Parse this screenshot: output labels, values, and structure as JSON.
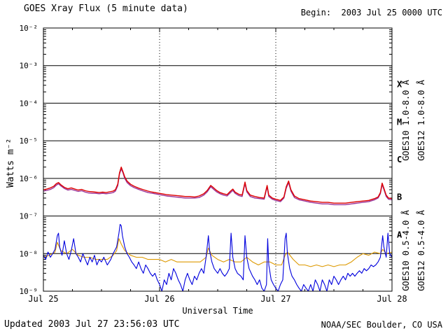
{
  "header": {
    "title": "GOES Xray Flux (5 minute data)",
    "begin_label": "Begin:  2003 Jul 25 0000 UTC"
  },
  "footer": {
    "updated": "Updated 2003 Jul 27 23:56:03 UTC",
    "source": "NOAA/SEC Boulder, CO USA"
  },
  "chart_data": {
    "type": "line",
    "title": "GOES Xray Flux (5 minute data)",
    "xlabel": "Universal Time",
    "ylabel": "Watts m⁻²",
    "x_unit": "days since 2003 Jul 25 0000 UTC",
    "xlim": [
      0,
      3
    ],
    "ylog": true,
    "ylim": [
      1e-09,
      0.01
    ],
    "grid": true,
    "legend_position": "right",
    "y_ticks": [
      {
        "exp": -2,
        "label": "10⁻²"
      },
      {
        "exp": -3,
        "label": "10⁻³"
      },
      {
        "exp": -4,
        "label": "10⁻⁴"
      },
      {
        "exp": -5,
        "label": "10⁻⁵"
      },
      {
        "exp": -6,
        "label": "10⁻⁶"
      },
      {
        "exp": -7,
        "label": "10⁻⁷"
      },
      {
        "exp": -8,
        "label": "10⁻⁸"
      },
      {
        "exp": -9,
        "label": "10⁻⁹"
      }
    ],
    "x_ticks": [
      {
        "t": 0,
        "label": "Jul 25"
      },
      {
        "t": 1,
        "label": "Jul 26"
      },
      {
        "t": 2,
        "label": "Jul 27"
      },
      {
        "t": 3,
        "label": "Jul 28"
      }
    ],
    "flare_classes": [
      {
        "letter": "X",
        "band": [
          -4,
          -3
        ]
      },
      {
        "letter": "M",
        "band": [
          -5,
          -4
        ]
      },
      {
        "letter": "C",
        "band": [
          -6,
          -5
        ]
      },
      {
        "letter": "B",
        "band": [
          -7,
          -6
        ]
      },
      {
        "letter": "A",
        "band": [
          -8,
          -7
        ]
      }
    ],
    "series": [
      {
        "name": "GOES10 1.0-8.0 Å",
        "color": "#993399",
        "legend": {
          "x": 584,
          "yc": 172
        },
        "x": [
          0.0,
          0.03,
          0.06,
          0.09,
          0.11,
          0.13,
          0.15,
          0.18,
          0.21,
          0.24,
          0.27,
          0.3,
          0.33,
          0.36,
          0.39,
          0.42,
          0.45,
          0.48,
          0.51,
          0.54,
          0.57,
          0.6,
          0.62,
          0.64,
          0.655,
          0.67,
          0.685,
          0.7,
          0.72,
          0.75,
          0.78,
          0.82,
          0.86,
          0.9,
          0.94,
          0.98,
          1.02,
          1.06,
          1.1,
          1.14,
          1.18,
          1.22,
          1.26,
          1.3,
          1.34,
          1.38,
          1.41,
          1.44,
          1.46,
          1.49,
          1.52,
          1.55,
          1.58,
          1.61,
          1.63,
          1.65,
          1.68,
          1.71,
          1.735,
          1.75,
          1.78,
          1.82,
          1.86,
          1.9,
          1.925,
          1.94,
          1.97,
          2.0,
          2.04,
          2.07,
          2.09,
          2.11,
          2.13,
          2.16,
          2.2,
          2.25,
          2.3,
          2.35,
          2.4,
          2.45,
          2.5,
          2.55,
          2.6,
          2.65,
          2.7,
          2.75,
          2.8,
          2.85,
          2.88,
          2.9,
          2.915,
          2.93,
          2.95,
          2.97,
          3.0
        ],
        "v": [
          4.6e-07,
          4.8e-07,
          5.1e-07,
          5.7e-07,
          6.6e-07,
          7.2e-07,
          6.3e-07,
          5.4e-07,
          4.9e-07,
          5.1e-07,
          4.8e-07,
          4.5e-07,
          4.7e-07,
          4.3e-07,
          4.1e-07,
          4e-07,
          4e-07,
          3.9e-07,
          4e-07,
          3.9e-07,
          4e-07,
          4.2e-07,
          4.6e-07,
          6.4e-07,
          1.3e-06,
          1.8e-06,
          1.4e-06,
          1e-06,
          7.8e-07,
          6.4e-07,
          5.7e-07,
          5.1e-07,
          4.6e-07,
          4.2e-07,
          4e-07,
          3.8e-07,
          3.6e-07,
          3.4e-07,
          3.3e-07,
          3.2e-07,
          3.1e-07,
          3e-07,
          3e-07,
          3e-07,
          3.1e-07,
          3.6e-07,
          4.4e-07,
          6e-07,
          5.3e-07,
          4.4e-07,
          3.9e-07,
          3.6e-07,
          3.4e-07,
          4.2e-07,
          4.8e-07,
          4e-07,
          3.5e-07,
          3.3e-07,
          7.4e-07,
          4.4e-07,
          3.3e-07,
          3e-07,
          2.9e-07,
          2.8e-07,
          6e-07,
          3.3e-07,
          2.8e-07,
          2.6e-07,
          2.4e-07,
          3e-07,
          5.5e-07,
          7.8e-07,
          4.6e-07,
          3.1e-07,
          2.7e-07,
          2.5e-07,
          2.3e-07,
          2.2e-07,
          2.1e-07,
          2.1e-07,
          2e-07,
          2e-07,
          2e-07,
          2.1e-07,
          2.2e-07,
          2.3e-07,
          2.4e-07,
          2.7e-07,
          3e-07,
          3.9e-07,
          6.9e-07,
          5.1e-07,
          3.3e-07,
          2.8e-07,
          2.7e-07
        ]
      },
      {
        "name": "GOES12 1.0-8.0 Å",
        "color": "#dd0000",
        "legend": {
          "x": 606,
          "yc": 172
        },
        "x": [
          0.0,
          0.03,
          0.06,
          0.09,
          0.11,
          0.13,
          0.15,
          0.18,
          0.21,
          0.24,
          0.27,
          0.3,
          0.33,
          0.36,
          0.39,
          0.42,
          0.45,
          0.48,
          0.51,
          0.54,
          0.57,
          0.6,
          0.62,
          0.64,
          0.655,
          0.67,
          0.685,
          0.7,
          0.72,
          0.75,
          0.78,
          0.82,
          0.86,
          0.9,
          0.94,
          0.98,
          1.02,
          1.06,
          1.1,
          1.14,
          1.18,
          1.22,
          1.26,
          1.3,
          1.34,
          1.38,
          1.41,
          1.44,
          1.46,
          1.49,
          1.52,
          1.55,
          1.58,
          1.61,
          1.63,
          1.65,
          1.68,
          1.71,
          1.735,
          1.75,
          1.78,
          1.82,
          1.86,
          1.9,
          1.925,
          1.94,
          1.97,
          2.0,
          2.04,
          2.07,
          2.09,
          2.11,
          2.13,
          2.16,
          2.2,
          2.25,
          2.3,
          2.35,
          2.4,
          2.45,
          2.5,
          2.55,
          2.6,
          2.65,
          2.7,
          2.75,
          2.8,
          2.85,
          2.88,
          2.9,
          2.915,
          2.93,
          2.95,
          2.97,
          3.0
        ],
        "v": [
          5e-07,
          5.2e-07,
          5.6e-07,
          6.2e-07,
          7.2e-07,
          7.8e-07,
          6.8e-07,
          5.8e-07,
          5.3e-07,
          5.6e-07,
          5.2e-07,
          4.9e-07,
          5.1e-07,
          4.7e-07,
          4.5e-07,
          4.4e-07,
          4.3e-07,
          4.2e-07,
          4.3e-07,
          4.2e-07,
          4.4e-07,
          4.6e-07,
          5e-07,
          7e-07,
          1.4e-06,
          2e-06,
          1.5e-06,
          1.1e-06,
          8.5e-07,
          7e-07,
          6.2e-07,
          5.5e-07,
          5e-07,
          4.6e-07,
          4.3e-07,
          4.1e-07,
          3.9e-07,
          3.7e-07,
          3.6e-07,
          3.5e-07,
          3.4e-07,
          3.3e-07,
          3.3e-07,
          3.2e-07,
          3.4e-07,
          3.9e-07,
          4.8e-07,
          6.5e-07,
          5.8e-07,
          4.8e-07,
          4.2e-07,
          3.9e-07,
          3.7e-07,
          4.6e-07,
          5.2e-07,
          4.3e-07,
          3.8e-07,
          3.6e-07,
          8e-07,
          4.8e-07,
          3.6e-07,
          3.3e-07,
          3.1e-07,
          3e-07,
          6.5e-07,
          3.6e-07,
          3e-07,
          2.8e-07,
          2.6e-07,
          3.2e-07,
          6e-07,
          8.5e-07,
          5e-07,
          3.4e-07,
          2.9e-07,
          2.7e-07,
          2.5e-07,
          2.4e-07,
          2.3e-07,
          2.3e-07,
          2.2e-07,
          2.2e-07,
          2.2e-07,
          2.3e-07,
          2.4e-07,
          2.5e-07,
          2.6e-07,
          2.9e-07,
          3.2e-07,
          4.2e-07,
          7.5e-07,
          5.5e-07,
          3.6e-07,
          3e-07,
          2.9e-07
        ]
      },
      {
        "name": "GOES10 0.5-4.0 Å",
        "color": "#dd9900",
        "legend": {
          "x": 584,
          "yc": 358
        },
        "x": [
          0.0,
          0.05,
          0.1,
          0.12,
          0.15,
          0.2,
          0.25,
          0.3,
          0.35,
          0.4,
          0.45,
          0.5,
          0.55,
          0.6,
          0.63,
          0.65,
          0.67,
          0.7,
          0.75,
          0.8,
          0.85,
          0.9,
          0.95,
          1.0,
          1.05,
          1.1,
          1.15,
          1.2,
          1.25,
          1.3,
          1.35,
          1.4,
          1.42,
          1.45,
          1.5,
          1.55,
          1.6,
          1.65,
          1.7,
          1.75,
          1.8,
          1.85,
          1.9,
          1.95,
          2.0,
          2.05,
          2.08,
          2.1,
          2.15,
          2.2,
          2.25,
          2.3,
          2.35,
          2.4,
          2.45,
          2.5,
          2.55,
          2.6,
          2.65,
          2.7,
          2.75,
          2.8,
          2.85,
          2.9,
          2.92,
          2.95,
          3.0
        ],
        "v": [
          8e-09,
          9e-09,
          1.1e-08,
          2e-08,
          1.2e-08,
          1e-08,
          1.3e-08,
          9e-09,
          8e-09,
          8e-09,
          7e-09,
          7e-09,
          7e-09,
          9e-09,
          1.2e-08,
          2.5e-08,
          1.8e-08,
          1.2e-08,
          9e-09,
          8e-09,
          8e-09,
          7e-09,
          7e-09,
          7e-09,
          6e-09,
          7e-09,
          6e-09,
          6e-09,
          6e-09,
          6e-09,
          6e-09,
          8e-09,
          1.4e-08,
          9e-09,
          7e-09,
          6e-09,
          7e-09,
          6e-09,
          6e-09,
          8e-09,
          6e-09,
          5e-09,
          6e-09,
          6e-09,
          5e-09,
          5e-09,
          9e-09,
          1.1e-08,
          7e-09,
          5e-09,
          5e-09,
          4.5e-09,
          5e-09,
          4.5e-09,
          5e-09,
          4.5e-09,
          5e-09,
          5e-09,
          6e-09,
          8e-09,
          1e-08,
          9e-09,
          1.1e-08,
          1e-08,
          1.3e-08,
          1e-08,
          1.1e-08
        ]
      },
      {
        "name": "GOES12 0.5-4.0 Å",
        "color": "#0000dd",
        "legend": {
          "x": 606,
          "yc": 358
        },
        "x": [
          0.0,
          0.02,
          0.04,
          0.06,
          0.08,
          0.1,
          0.12,
          0.13,
          0.14,
          0.16,
          0.18,
          0.2,
          0.22,
          0.24,
          0.26,
          0.28,
          0.3,
          0.32,
          0.34,
          0.36,
          0.38,
          0.4,
          0.42,
          0.44,
          0.46,
          0.48,
          0.5,
          0.52,
          0.55,
          0.58,
          0.6,
          0.63,
          0.65,
          0.66,
          0.67,
          0.68,
          0.7,
          0.72,
          0.74,
          0.76,
          0.78,
          0.8,
          0.82,
          0.84,
          0.86,
          0.88,
          0.9,
          0.92,
          0.94,
          0.96,
          0.98,
          1.0,
          1.02,
          1.04,
          1.06,
          1.08,
          1.1,
          1.12,
          1.14,
          1.16,
          1.18,
          1.2,
          1.22,
          1.24,
          1.26,
          1.28,
          1.3,
          1.32,
          1.34,
          1.36,
          1.38,
          1.4,
          1.42,
          1.43,
          1.45,
          1.47,
          1.5,
          1.52,
          1.54,
          1.56,
          1.58,
          1.6,
          1.615,
          1.63,
          1.65,
          1.67,
          1.7,
          1.72,
          1.735,
          1.75,
          1.77,
          1.8,
          1.82,
          1.84,
          1.86,
          1.88,
          1.9,
          1.92,
          1.93,
          1.94,
          1.96,
          1.98,
          2.0,
          2.02,
          2.04,
          2.06,
          2.08,
          2.09,
          2.1,
          2.12,
          2.14,
          2.16,
          2.18,
          2.2,
          2.22,
          2.24,
          2.26,
          2.28,
          2.3,
          2.32,
          2.34,
          2.36,
          2.38,
          2.4,
          2.42,
          2.44,
          2.46,
          2.48,
          2.5,
          2.52,
          2.54,
          2.56,
          2.58,
          2.6,
          2.62,
          2.64,
          2.66,
          2.68,
          2.7,
          2.72,
          2.74,
          2.76,
          2.78,
          2.8,
          2.82,
          2.84,
          2.86,
          2.88,
          2.9,
          2.92,
          2.93,
          2.95,
          2.965,
          2.98,
          3.0
        ],
        "v": [
          9e-09,
          7e-09,
          1.1e-08,
          8e-09,
          1e-08,
          1.3e-08,
          3e-08,
          3.5e-08,
          1.5e-08,
          9e-09,
          2.2e-08,
          1e-08,
          7e-09,
          1.2e-08,
          2.5e-08,
          1e-08,
          8e-09,
          6e-09,
          1e-08,
          7e-09,
          5e-09,
          8e-09,
          6e-09,
          9e-09,
          5e-09,
          7e-09,
          6e-09,
          8e-09,
          5e-09,
          7e-09,
          1e-08,
          1.5e-08,
          3.5e-08,
          6e-08,
          5.5e-08,
          3e-08,
          1.5e-08,
          1e-08,
          8e-09,
          6e-09,
          5e-09,
          4e-09,
          6e-09,
          4e-09,
          3e-09,
          5e-09,
          4e-09,
          3e-09,
          2.5e-09,
          3e-09,
          2e-09,
          1.5e-09,
          1e-09,
          2e-09,
          1.5e-09,
          3e-09,
          2e-09,
          4e-09,
          3e-09,
          2e-09,
          1.5e-09,
          1e-09,
          2e-09,
          3e-09,
          2e-09,
          1.5e-09,
          2.5e-09,
          2e-09,
          3e-09,
          4e-09,
          3e-09,
          8e-09,
          3e-08,
          1.2e-08,
          6e-09,
          4e-09,
          3e-09,
          4e-09,
          3e-09,
          2.5e-09,
          3e-09,
          4e-09,
          3.5e-08,
          8e-09,
          4e-09,
          3e-09,
          2.5e-09,
          2e-09,
          3e-08,
          8e-09,
          4e-09,
          2.5e-09,
          2e-09,
          1.5e-09,
          2e-09,
          1.2e-09,
          1e-09,
          1.5e-09,
          2.5e-08,
          5e-09,
          2e-09,
          1.5e-09,
          1.2e-09,
          1e-09,
          1.5e-09,
          2e-09,
          2.5e-08,
          3.5e-08,
          1e-08,
          4e-09,
          2.5e-09,
          2e-09,
          1.5e-09,
          1.2e-09,
          1e-09,
          1.5e-09,
          1.2e-09,
          1e-09,
          1.5e-09,
          1e-09,
          2e-09,
          1.5e-09,
          1e-09,
          2e-09,
          1.5e-09,
          1e-09,
          2e-09,
          1.5e-09,
          2.5e-09,
          2e-09,
          1.5e-09,
          2e-09,
          2.5e-09,
          2e-09,
          3e-09,
          2.5e-09,
          3e-09,
          2.5e-09,
          3e-09,
          3.5e-09,
          3e-09,
          4e-09,
          3.5e-09,
          4e-09,
          5e-09,
          4.5e-09,
          5e-09,
          6e-09,
          8e-09,
          3e-08,
          1.5e-08,
          8e-09,
          3.5e-08,
          1e-08,
          8e-09
        ]
      }
    ]
  }
}
